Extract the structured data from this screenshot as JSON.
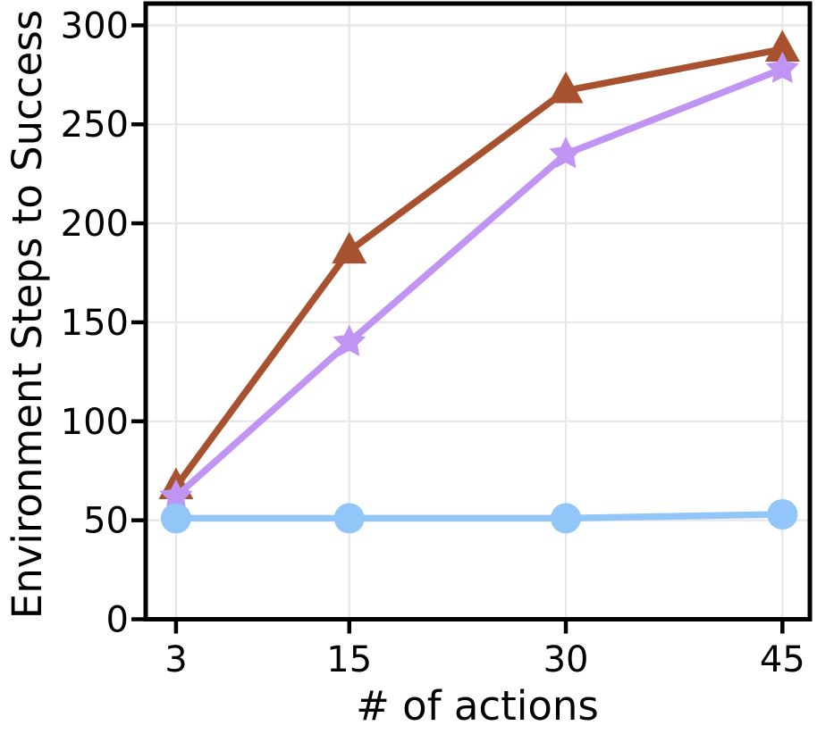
{
  "figure": {
    "background": "#ffffff"
  },
  "chart_data": {
    "type": "line",
    "title": "",
    "xlabel": "# of actions",
    "ylabel": "Environment Steps to Success",
    "x": [
      3,
      15,
      30,
      45
    ],
    "xticks": [
      3,
      15,
      30,
      45
    ],
    "xtick_labels": [
      "3",
      "15",
      "30",
      "45"
    ],
    "yticks": [
      0,
      50,
      100,
      150,
      200,
      250,
      300
    ],
    "ytick_labels": [
      "0",
      "50",
      "100",
      "150",
      "200",
      "250",
      "300"
    ],
    "xlim": [
      0.9,
      46.9
    ],
    "ylim": [
      0,
      311
    ],
    "grid": true,
    "legend_position": "none",
    "colors": {
      "axis": "#000000",
      "grid": "#e7e7e7",
      "tick_label": "#000000",
      "background": "#ffffff"
    },
    "series": [
      {
        "name": "brown-triangle-series",
        "marker": "triangle-up-marker",
        "color": "#a8512f",
        "values": [
          67,
          186,
          267,
          288
        ]
      },
      {
        "name": "purple-star-series",
        "marker": "star-marker",
        "color": "#bf94f3",
        "values": [
          62,
          140,
          235,
          278
        ]
      },
      {
        "name": "blue-circle-series",
        "marker": "circle-marker",
        "color": "#92c6f8",
        "values": [
          51,
          51,
          51,
          53
        ]
      }
    ]
  }
}
